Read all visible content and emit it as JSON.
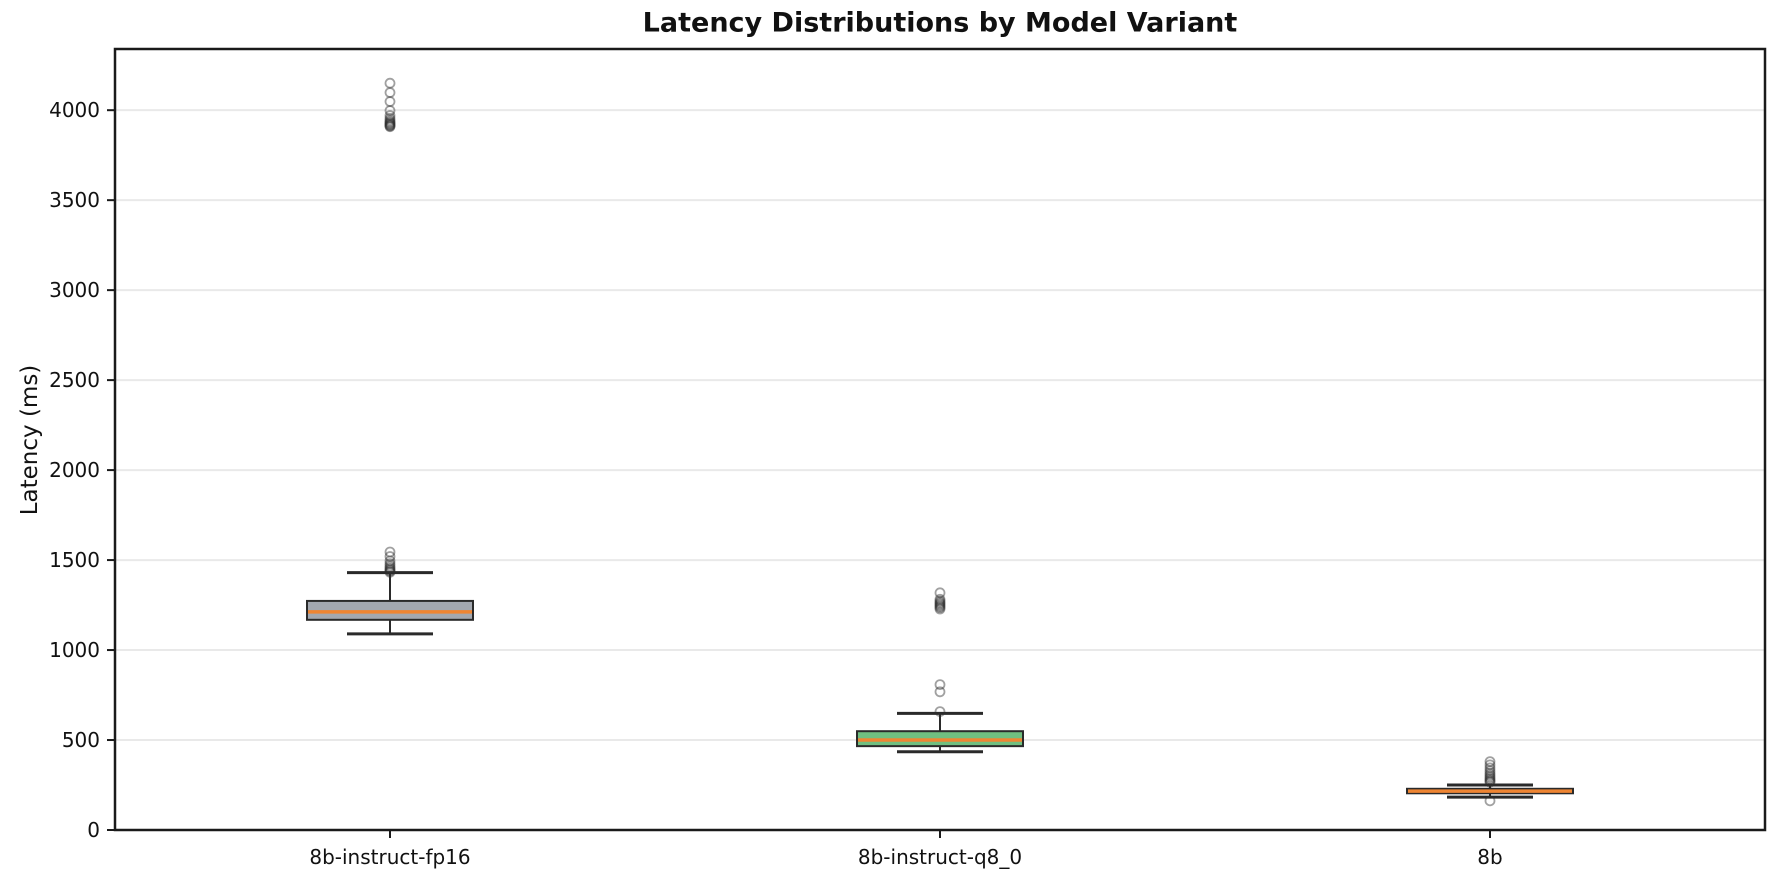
{
  "chart_data": {
    "type": "box",
    "title": "Latency Distributions by Model Variant",
    "ylabel": "Latency (ms)",
    "xlabel": "",
    "yticks": [
      0,
      500,
      1000,
      1500,
      2000,
      2500,
      3000,
      3500,
      4000
    ],
    "ylim": [
      0,
      4340
    ],
    "grid": "horizontal-light",
    "legend": "none",
    "categories": [
      "8b-instruct-fp16",
      "8b-instruct-q8_0",
      "8b"
    ],
    "series": [
      {
        "name": "8b-instruct-fp16",
        "box_color": "#a3a8b0",
        "whisker_low": 1090,
        "q1": 1168,
        "median": 1212,
        "q3": 1273,
        "whisker_high": 1430,
        "outliers": [
          1432,
          1438,
          1444,
          1450,
          1458,
          1468,
          1480,
          1495,
          1520,
          1545,
          3908,
          3912,
          3916,
          3920,
          3925,
          3930,
          3936,
          3944,
          3955,
          3970,
          3998,
          4048,
          4098,
          4150
        ]
      },
      {
        "name": "8b-instruct-q8_0",
        "box_color": "#70bf80",
        "whisker_low": 435,
        "q1": 466,
        "median": 500,
        "q3": 549,
        "whisker_high": 648,
        "outliers": [
          658,
          768,
          808,
          1228,
          1236,
          1243,
          1250,
          1257,
          1264,
          1272,
          1282,
          1318
        ]
      },
      {
        "name": "8b",
        "box_color": "#ee8533",
        "whisker_low": 183,
        "q1": 204,
        "median": 216,
        "q3": 229,
        "whisker_high": 250,
        "outliers": [
          162,
          266,
          272,
          279,
          287,
          296,
          306,
          317,
          330,
          345,
          362,
          380
        ]
      }
    ],
    "style": {
      "median_color": "#ee8533",
      "box_edge_color": "#2a2a2a",
      "whisker_color": "#2a2a2a",
      "spine_color": "#1a1a1a",
      "grid_color": "#e9e9e9",
      "tick_label_color": "#111111",
      "outlier_stroke": "#2f2f2f"
    }
  }
}
